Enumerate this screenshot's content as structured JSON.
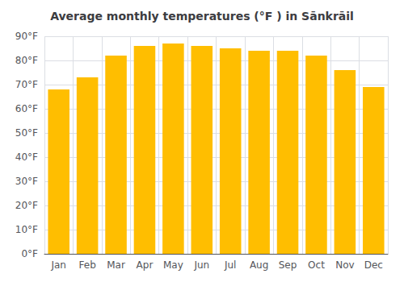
{
  "chart_data": {
    "type": "bar",
    "title": "Average monthly temperatures (°F ) in Sānkrāil",
    "categories": [
      "Jan",
      "Feb",
      "Mar",
      "Apr",
      "May",
      "Jun",
      "Jul",
      "Aug",
      "Sep",
      "Oct",
      "Nov",
      "Dec"
    ],
    "values": [
      68,
      73,
      82,
      86,
      87,
      86,
      85,
      84,
      84,
      82,
      76,
      69
    ],
    "color": "#FFBE00",
    "ylim": [
      0,
      90
    ],
    "yticks": [
      {
        "value": 0,
        "label": "0°F"
      },
      {
        "value": 10,
        "label": "10°F"
      },
      {
        "value": 20,
        "label": "20°F"
      },
      {
        "value": 30,
        "label": "30°F"
      },
      {
        "value": 40,
        "label": "40°F"
      },
      {
        "value": 50,
        "label": "50°F"
      },
      {
        "value": 60,
        "label": "60°F"
      },
      {
        "value": 70,
        "label": "70°F"
      },
      {
        "value": 80,
        "label": "80°F"
      },
      {
        "value": 90,
        "label": "90°F"
      }
    ],
    "grid": true
  }
}
